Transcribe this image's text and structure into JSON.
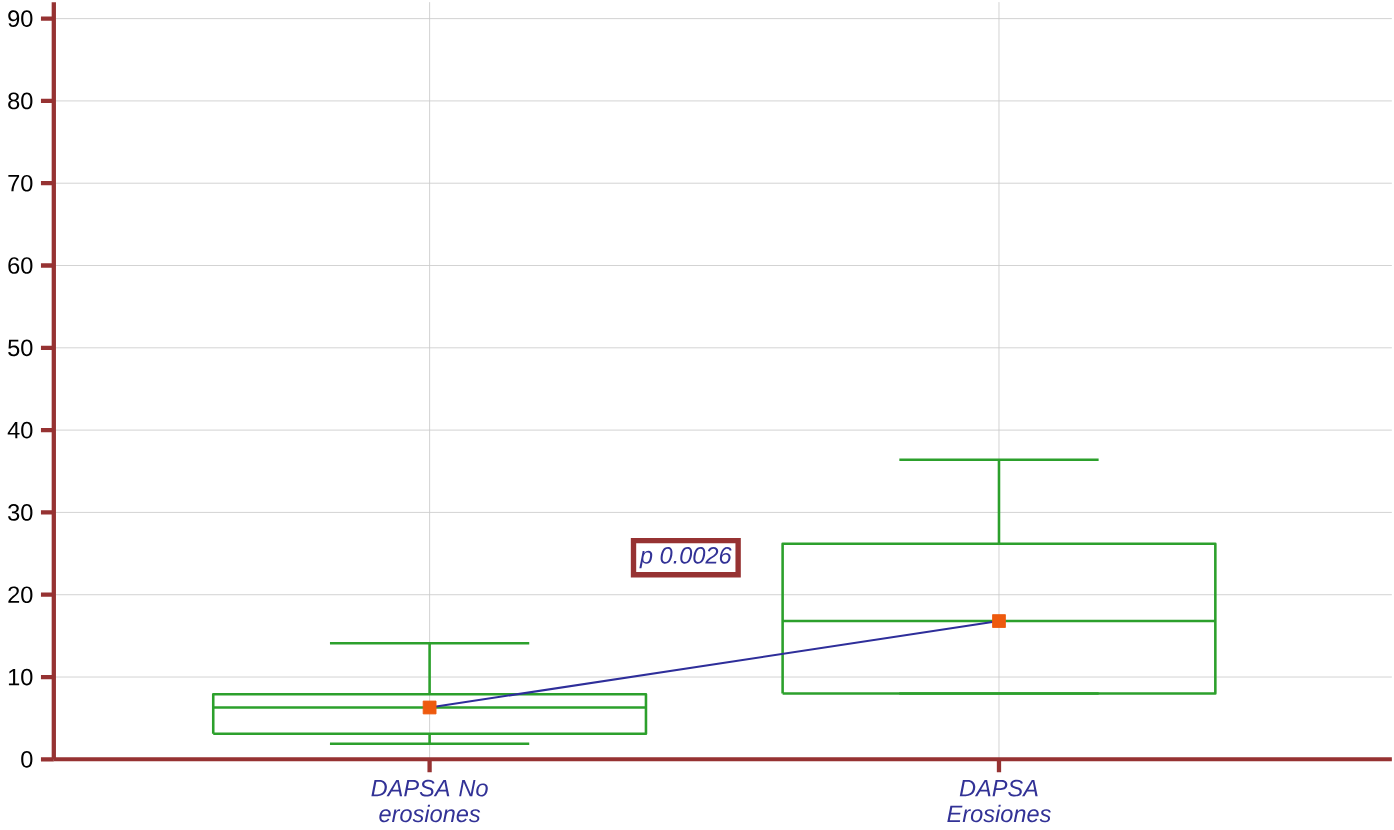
{
  "chart_data": {
    "type": "box",
    "categories": [
      "DAPSA No erosiones",
      "DAPSA Erosiones"
    ],
    "boxes": [
      {
        "low": 1.9,
        "q1": 3.1,
        "median": 6.3,
        "q3": 7.9,
        "high": 14.1
      },
      {
        "low": 8.0,
        "q1": 8.0,
        "median": 16.8,
        "q3": 26.2,
        "high": 36.4
      }
    ],
    "color": "#2ca02c",
    "series": [
      {
        "type": "line",
        "color": "#2e2e9a",
        "values": [
          6.3,
          16.8
        ],
        "marker": "none"
      },
      {
        "type": "scatter",
        "color": "#ee5a0e",
        "values": [
          6.3,
          16.8
        ],
        "marker": "square"
      }
    ],
    "ylim": [
      0,
      92
    ],
    "yticks": [
      0,
      10,
      20,
      30,
      40,
      50,
      60,
      70,
      80,
      90
    ],
    "grid": true,
    "annotations": [
      "p 0.0026"
    ]
  }
}
